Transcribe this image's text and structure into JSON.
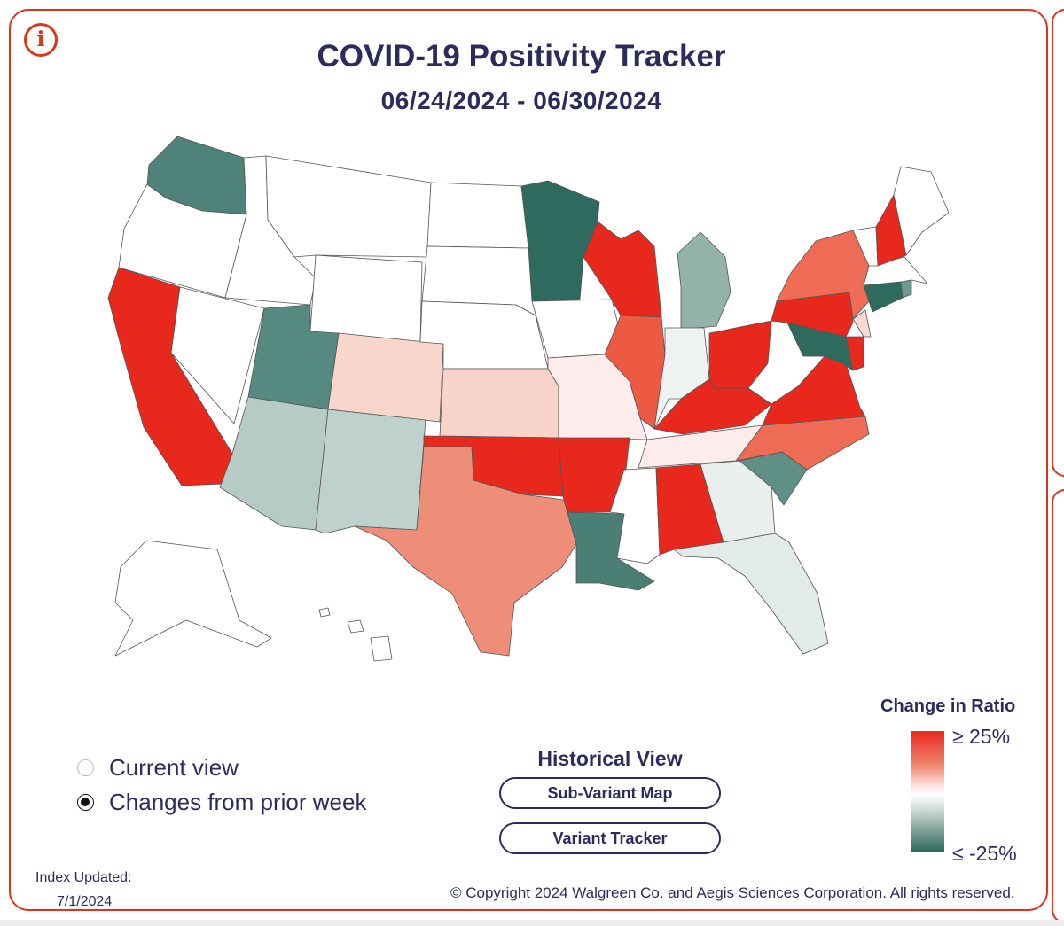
{
  "header": {
    "title": "COVID-19 Positivity Tracker",
    "date_range": "06/24/2024 - 06/30/2024",
    "info_icon": "info-icon",
    "info_glyph": "i"
  },
  "map": {
    "type": "choropleth",
    "region": "United States",
    "metric": "Change in positivity ratio from prior week",
    "color_scale": {
      "high_color": "#e8281c",
      "mid_color": "#ffffff",
      "low_color": "#2e6a5e"
    },
    "states": [
      {
        "code": "WA",
        "category": "decrease",
        "color": "#4f8278"
      },
      {
        "code": "OR",
        "category": "no data",
        "color": "#ffffff"
      },
      {
        "code": "CA",
        "category": "increase >= 25%",
        "color": "#e8281c"
      },
      {
        "code": "NV",
        "category": "no data",
        "color": "#ffffff"
      },
      {
        "code": "ID",
        "category": "no data",
        "color": "#ffffff"
      },
      {
        "code": "MT",
        "category": "no data",
        "color": "#ffffff"
      },
      {
        "code": "WY",
        "category": "no data",
        "color": "#ffffff"
      },
      {
        "code": "UT",
        "category": "decrease",
        "color": "#568a80"
      },
      {
        "code": "AZ",
        "category": "slight decrease",
        "color": "#b6cbc6"
      },
      {
        "code": "CO",
        "category": "slight increase",
        "color": "#f9d6cc"
      },
      {
        "code": "NM",
        "category": "slight decrease",
        "color": "#bfd1cc"
      },
      {
        "code": "ND",
        "category": "no data",
        "color": "#ffffff"
      },
      {
        "code": "SD",
        "category": "no data",
        "color": "#ffffff"
      },
      {
        "code": "NE",
        "category": "no data",
        "color": "#ffffff"
      },
      {
        "code": "KS",
        "category": "slight increase",
        "color": "#f8d3ca"
      },
      {
        "code": "OK",
        "category": "increase >= 25%",
        "color": "#e8281c"
      },
      {
        "code": "TX",
        "category": "increase",
        "color": "#ef8e78"
      },
      {
        "code": "MN",
        "category": "decrease <= -25%",
        "color": "#2e6a5e"
      },
      {
        "code": "IA",
        "category": "no data",
        "color": "#ffffff"
      },
      {
        "code": "MO",
        "category": "slight increase",
        "color": "#fdecec"
      },
      {
        "code": "AR",
        "category": "increase >= 25%",
        "color": "#e8281c"
      },
      {
        "code": "LA",
        "category": "decrease",
        "color": "#4b7f75"
      },
      {
        "code": "WI",
        "category": "increase >= 25%",
        "color": "#e8281c"
      },
      {
        "code": "IL",
        "category": "increase",
        "color": "#ec5a43"
      },
      {
        "code": "MI",
        "category": "decrease",
        "color": "#93b2aa"
      },
      {
        "code": "IN",
        "category": "slight decrease",
        "color": "#eef2f0"
      },
      {
        "code": "OH",
        "category": "increase >= 25%",
        "color": "#e8281c"
      },
      {
        "code": "KY",
        "category": "increase >= 25%",
        "color": "#e8281c"
      },
      {
        "code": "TN",
        "category": "slight increase",
        "color": "#fdeceb"
      },
      {
        "code": "MS",
        "category": "no data",
        "color": "#ffffff"
      },
      {
        "code": "AL",
        "category": "increase >= 25%",
        "color": "#e8281c"
      },
      {
        "code": "GA",
        "category": "slight decrease",
        "color": "#e9efed"
      },
      {
        "code": "FL",
        "category": "slight decrease",
        "color": "#e3ebe8"
      },
      {
        "code": "SC",
        "category": "decrease",
        "color": "#5f8f85"
      },
      {
        "code": "NC",
        "category": "increase",
        "color": "#ee6c55"
      },
      {
        "code": "VA",
        "category": "increase >= 25%",
        "color": "#e8281c"
      },
      {
        "code": "WV",
        "category": "no data",
        "color": "#ffffff"
      },
      {
        "code": "MD",
        "category": "decrease <= -25%",
        "color": "#2e6a5e"
      },
      {
        "code": "DE",
        "category": "increase >= 25%",
        "color": "#e8281c"
      },
      {
        "code": "PA",
        "category": "increase >= 25%",
        "color": "#e8281c"
      },
      {
        "code": "NY",
        "category": "increase",
        "color": "#ee6c55"
      },
      {
        "code": "NJ",
        "category": "slight increase",
        "color": "#fbd9d6"
      },
      {
        "code": "CT",
        "category": "decrease <= -25%",
        "color": "#2e6a5e"
      },
      {
        "code": "RI",
        "category": "decrease",
        "color": "#6f9a90"
      },
      {
        "code": "MA",
        "category": "no data",
        "color": "#ffffff"
      },
      {
        "code": "VT",
        "category": "no data",
        "color": "#ffffff"
      },
      {
        "code": "NH",
        "category": "increase >= 25%",
        "color": "#e8281c"
      },
      {
        "code": "ME",
        "category": "no data",
        "color": "#ffffff"
      },
      {
        "code": "AK",
        "category": "no data",
        "color": "#ffffff"
      },
      {
        "code": "HI",
        "category": "no data",
        "color": "#ffffff"
      }
    ]
  },
  "legend": {
    "title": "Change in Ratio",
    "high_label": "≥ 25%",
    "low_label": "≤ -25%"
  },
  "view_options": [
    {
      "label": "Current view",
      "selected": false
    },
    {
      "label": "Changes from prior week",
      "selected": true
    }
  ],
  "historical": {
    "title": "Historical View",
    "buttons": [
      "Sub-Variant Map",
      "Variant Tracker"
    ]
  },
  "footer": {
    "index_label": "Index Updated:",
    "index_date": "7/1/2024",
    "copyright": "© Copyright 2024 Walgreen Co. and Aegis Sciences Corporation. All rights reserved."
  }
}
